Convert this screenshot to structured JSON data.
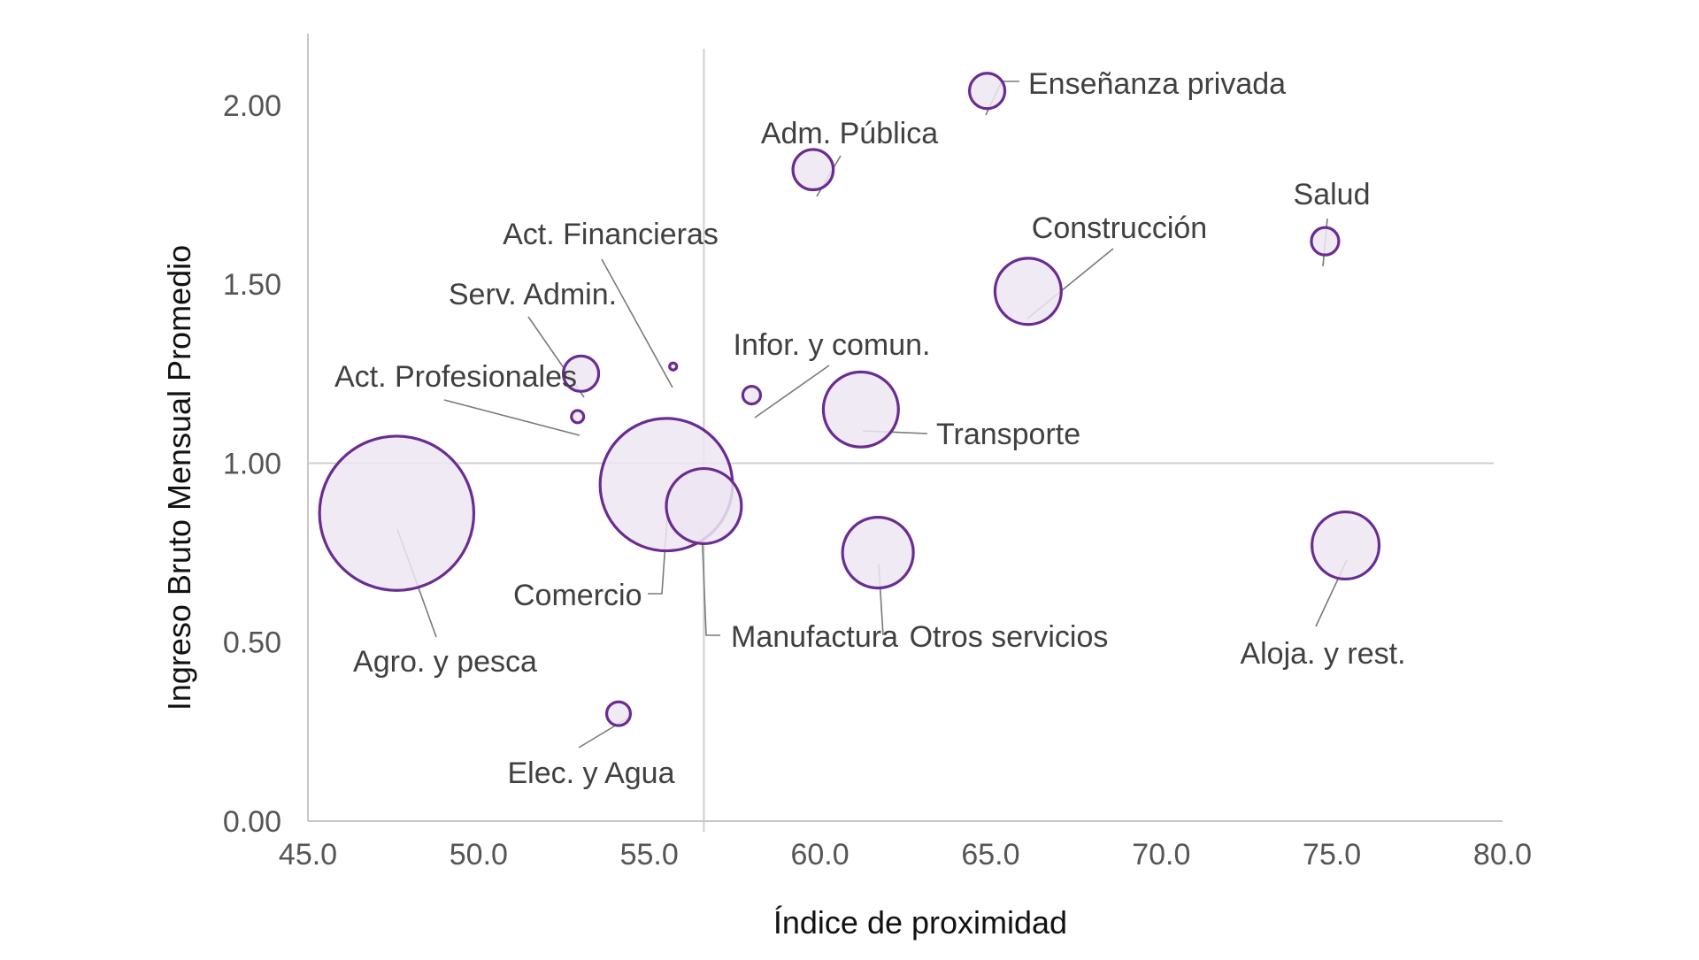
{
  "chart_data": {
    "type": "bubble",
    "xlabel": "Índice de proximidad",
    "ylabel": "Ingreso Bruto Mensual Promedio",
    "xlim": [
      45,
      80
    ],
    "ylim": [
      0,
      2.2
    ],
    "x_ticks": [
      "45.0",
      "50.0",
      "55.0",
      "60.0",
      "65.0",
      "70.0",
      "75.0",
      "80.0"
    ],
    "y_ticks": [
      "0.00",
      "0.50",
      "1.00",
      "1.50",
      "2.00"
    ],
    "reference_lines": {
      "x": 56.6,
      "y": 1.0
    },
    "colors": {
      "bubble_stroke": "#6a2c91",
      "bubble_fill": "#ede6f2",
      "leader": "#7a7a7a"
    },
    "points": [
      {
        "label": "Enseñanza privada",
        "x": 64.9,
        "y": 2.04,
        "size": 1.0
      },
      {
        "label": "Adm. Pública",
        "x": 59.8,
        "y": 1.82,
        "size": 1.3
      },
      {
        "label": "Salud",
        "x": 74.8,
        "y": 1.62,
        "size": 0.6
      },
      {
        "label": "Construcción",
        "x": 66.1,
        "y": 1.48,
        "size": 3.5
      },
      {
        "label": "Act. Financieras",
        "x": 55.7,
        "y": 1.27,
        "size": 0.04
      },
      {
        "label": "Serv. Admin.",
        "x": 53.0,
        "y": 1.25,
        "size": 1.0
      },
      {
        "label": "Infor. y comun.",
        "x": 58.0,
        "y": 1.19,
        "size": 0.25
      },
      {
        "label": "Transporte",
        "x": 61.2,
        "y": 1.15,
        "size": 4.5
      },
      {
        "label": "Act. Profesionales",
        "x": 52.9,
        "y": 1.13,
        "size": 0.12
      },
      {
        "label": "Comercio",
        "x": 55.5,
        "y": 0.94,
        "size": 14.0
      },
      {
        "label": "Manufactura",
        "x": 56.6,
        "y": 0.88,
        "size": 4.5
      },
      {
        "label": "Agro. y pesca",
        "x": 47.6,
        "y": 0.86,
        "size": 19.0
      },
      {
        "label": "Otros servicios",
        "x": 61.7,
        "y": 0.75,
        "size": 4.0
      },
      {
        "label": "Aloja. y rest.",
        "x": 75.4,
        "y": 0.77,
        "size": 3.6
      },
      {
        "label": "Elec. y Agua",
        "x": 54.1,
        "y": 0.3,
        "size": 0.45
      }
    ]
  }
}
